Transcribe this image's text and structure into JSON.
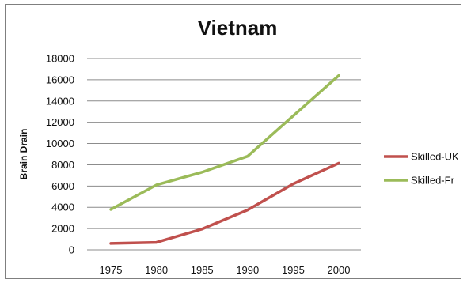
{
  "chart_data": {
    "type": "line",
    "title": "Vietnam",
    "xlabel": "",
    "ylabel": "Brain Drain",
    "categories": [
      "1975",
      "1980",
      "1985",
      "1990",
      "1995",
      "2000"
    ],
    "ylim": [
      0,
      18000
    ],
    "yticks": [
      0,
      2000,
      4000,
      6000,
      8000,
      10000,
      12000,
      14000,
      16000,
      18000
    ],
    "grid": true,
    "legend_position": "right",
    "series": [
      {
        "name": "Skilled-UK",
        "color": "#c0504d",
        "values": [
          600,
          700,
          1950,
          3750,
          6200,
          8150
        ]
      },
      {
        "name": "Skilled-Fr",
        "color": "#9bbb59",
        "values": [
          3800,
          6100,
          7300,
          8800,
          12600,
          16400
        ]
      }
    ]
  }
}
